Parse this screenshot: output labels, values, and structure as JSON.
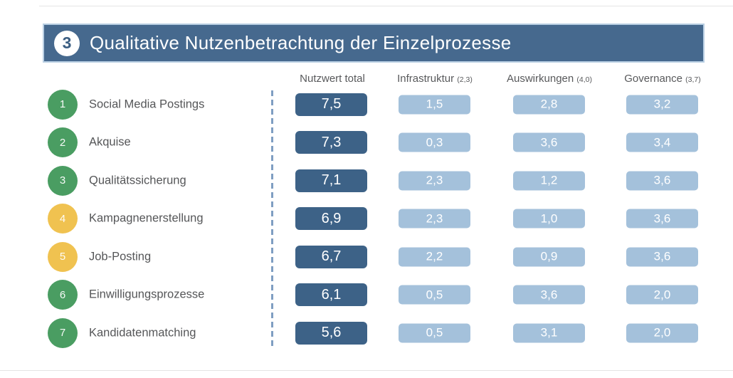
{
  "header": {
    "badge": "3",
    "title": "Qualitative Nutzenbetrachtung der Einzelprozesse"
  },
  "columns": [
    {
      "label": "Nutzwert total",
      "weight": ""
    },
    {
      "label": "Infrastruktur",
      "weight": "(2,3)"
    },
    {
      "label": "Auswirkungen",
      "weight": "(4,0)"
    },
    {
      "label": "Governance",
      "weight": "(3,7)"
    }
  ],
  "rows": [
    {
      "num": "1",
      "label": "Social Media Postings",
      "color": "green",
      "total": "7,5",
      "infrastruktur": "1,5",
      "auswirkungen": "2,8",
      "governance": "3,2"
    },
    {
      "num": "2",
      "label": "Akquise",
      "color": "green",
      "total": "7,3",
      "infrastruktur": "0,3",
      "auswirkungen": "3,6",
      "governance": "3,4"
    },
    {
      "num": "3",
      "label": "Qualitätssicherung",
      "color": "green",
      "total": "7,1",
      "infrastruktur": "2,3",
      "auswirkungen": "1,2",
      "governance": "3,6"
    },
    {
      "num": "4",
      "label": "Kampagnenerstellung",
      "color": "yellow",
      "total": "6,9",
      "infrastruktur": "2,3",
      "auswirkungen": "1,0",
      "governance": "3,6"
    },
    {
      "num": "5",
      "label": "Job-Posting",
      "color": "yellow",
      "total": "6,7",
      "infrastruktur": "2,2",
      "auswirkungen": "0,9",
      "governance": "3,6"
    },
    {
      "num": "6",
      "label": "Einwilligungsprozesse",
      "color": "green",
      "total": "6,1",
      "infrastruktur": "0,5",
      "auswirkungen": "3,6",
      "governance": "2,0"
    },
    {
      "num": "7",
      "label": "Kandidatenmatching",
      "color": "green",
      "total": "5,6",
      "infrastruktur": "0,5",
      "auswirkungen": "3,1",
      "governance": "2,0"
    }
  ],
  "colors": {
    "header_bar": "#46698e",
    "header_bar_border": "#b9cfe3",
    "dark_pill": "#3d6287",
    "light_pill": "#a4c1db",
    "green_badge": "#4a9d62",
    "yellow_badge": "#f0c250",
    "dashed_divider": "#7f9ec2",
    "text_gray": "#58595b"
  },
  "chart_data": {
    "type": "table",
    "title": "Qualitative Nutzenbetrachtung der Einzelprozesse",
    "column_headers": [
      "Nutzwert total",
      "Infrastruktur (2,3)",
      "Auswirkungen (4,0)",
      "Governance (3,7)"
    ],
    "column_weights": {
      "Infrastruktur": 2.3,
      "Auswirkungen": 4.0,
      "Governance": 3.7
    },
    "processes": [
      "Social Media Postings",
      "Akquise",
      "Qualitätssicherung",
      "Kampagnenerstellung",
      "Job-Posting",
      "Einwilligungsprozesse",
      "Kandidatenmatching"
    ],
    "series": [
      {
        "name": "Nutzwert total",
        "values": [
          7.5,
          7.3,
          7.1,
          6.9,
          6.7,
          6.1,
          5.6
        ]
      },
      {
        "name": "Infrastruktur",
        "values": [
          1.5,
          0.3,
          2.3,
          2.3,
          2.2,
          0.5,
          0.5
        ]
      },
      {
        "name": "Auswirkungen",
        "values": [
          2.8,
          3.6,
          1.2,
          1.0,
          0.9,
          3.6,
          3.1
        ]
      },
      {
        "name": "Governance",
        "values": [
          3.2,
          3.4,
          3.6,
          3.6,
          3.6,
          2.0,
          2.0
        ]
      }
    ],
    "badge_colors": [
      "green",
      "green",
      "green",
      "yellow",
      "yellow",
      "green",
      "green"
    ],
    "notes": "decimal comma formatting (German); row badges numbered 1-7"
  }
}
